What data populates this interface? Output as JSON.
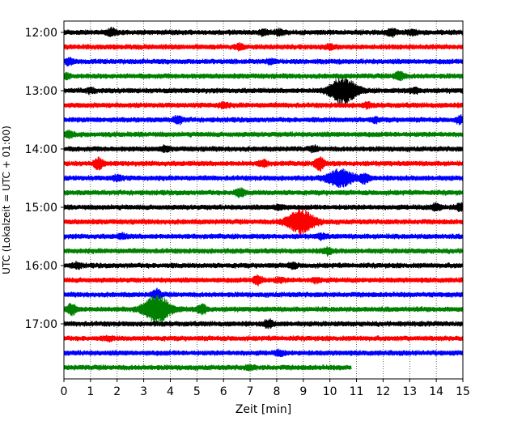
{
  "chart_data": {
    "type": "line",
    "title": "",
    "xlabel": "Zeit  [min]",
    "ylabel": "UTC (Lokalzeit = UTC + 01:00)",
    "xlim": [
      0,
      15
    ],
    "x_ticks": [
      0,
      1,
      2,
      3,
      4,
      5,
      6,
      7,
      8,
      9,
      10,
      11,
      12,
      13,
      14,
      15
    ],
    "x_tick_labels": [
      "0",
      "1",
      "2",
      "3",
      "4",
      "5",
      "6",
      "7",
      "8",
      "9",
      "10",
      "11",
      "12",
      "13",
      "14",
      "15"
    ],
    "y_tick_labels": [
      "12:00",
      "13:00",
      "14:00",
      "15:00",
      "16:00",
      "17:00"
    ],
    "grid": "vertical dotted",
    "trace_interval_min": 15,
    "colors": [
      "#000000",
      "#ff0000",
      "#0000ff",
      "#008000"
    ],
    "series": [
      {
        "start": "12:00",
        "color": "#000000",
        "end_min": 15,
        "events": [
          {
            "x": 1.8,
            "amp": 0.9
          },
          {
            "x": 7.5,
            "amp": 0.6
          },
          {
            "x": 8.1,
            "amp": 0.7
          },
          {
            "x": 12.3,
            "amp": 0.9
          },
          {
            "x": 13.1,
            "amp": 0.6
          }
        ]
      },
      {
        "start": "12:15",
        "color": "#ff0000",
        "end_min": 15,
        "events": [
          {
            "x": 6.6,
            "amp": 0.6
          },
          {
            "x": 10.0,
            "amp": 0.5
          }
        ]
      },
      {
        "start": "12:30",
        "color": "#0000ff",
        "end_min": 15,
        "events": [
          {
            "x": 0.2,
            "amp": 0.8
          },
          {
            "x": 7.8,
            "amp": 0.5
          }
        ]
      },
      {
        "start": "12:45",
        "color": "#008000",
        "end_min": 15,
        "events": [
          {
            "x": 0.1,
            "amp": 0.6
          },
          {
            "x": 12.6,
            "amp": 1.1
          }
        ]
      },
      {
        "start": "13:00",
        "color": "#000000",
        "end_min": 15,
        "events": [
          {
            "x": 1.0,
            "amp": 0.5
          },
          {
            "x": 10.5,
            "amp": 3.5
          },
          {
            "x": 13.2,
            "amp": 0.6
          }
        ]
      },
      {
        "start": "13:15",
        "color": "#ff0000",
        "end_min": 15,
        "events": [
          {
            "x": 6.0,
            "amp": 0.6
          },
          {
            "x": 11.4,
            "amp": 0.5
          }
        ]
      },
      {
        "start": "13:30",
        "color": "#0000ff",
        "end_min": 15,
        "events": [
          {
            "x": 4.3,
            "amp": 0.9
          },
          {
            "x": 11.7,
            "amp": 0.5
          },
          {
            "x": 14.9,
            "amp": 0.8
          }
        ]
      },
      {
        "start": "13:45",
        "color": "#008000",
        "end_min": 15,
        "events": [
          {
            "x": 0.2,
            "amp": 0.7
          }
        ]
      },
      {
        "start": "14:00",
        "color": "#000000",
        "end_min": 15,
        "events": [
          {
            "x": 3.8,
            "amp": 0.5
          },
          {
            "x": 9.4,
            "amp": 0.5
          }
        ]
      },
      {
        "start": "14:15",
        "color": "#ff0000",
        "end_min": 15,
        "events": [
          {
            "x": 1.3,
            "amp": 1.4
          },
          {
            "x": 7.5,
            "amp": 0.7
          },
          {
            "x": 9.6,
            "amp": 1.8
          }
        ]
      },
      {
        "start": "14:30",
        "color": "#0000ff",
        "end_min": 15,
        "events": [
          {
            "x": 2.0,
            "amp": 0.7
          },
          {
            "x": 10.4,
            "amp": 2.2
          },
          {
            "x": 11.3,
            "amp": 1.2
          }
        ]
      },
      {
        "start": "14:45",
        "color": "#008000",
        "end_min": 15,
        "events": [
          {
            "x": 6.6,
            "amp": 1.0
          }
        ]
      },
      {
        "start": "15:00",
        "color": "#000000",
        "end_min": 15,
        "events": [
          {
            "x": 8.1,
            "amp": 0.6
          },
          {
            "x": 14.0,
            "amp": 0.9
          },
          {
            "x": 14.9,
            "amp": 0.8
          }
        ]
      },
      {
        "start": "15:15",
        "color": "#ff0000",
        "end_min": 15,
        "events": [
          {
            "x": 8.9,
            "amp": 3.2
          }
        ]
      },
      {
        "start": "15:30",
        "color": "#0000ff",
        "end_min": 15,
        "events": [
          {
            "x": 2.2,
            "amp": 0.5
          },
          {
            "x": 9.7,
            "amp": 0.6
          }
        ]
      },
      {
        "start": "15:45",
        "color": "#008000",
        "end_min": 15,
        "events": [
          {
            "x": 9.9,
            "amp": 0.8
          }
        ]
      },
      {
        "start": "16:00",
        "color": "#000000",
        "end_min": 15,
        "events": [
          {
            "x": 0.5,
            "amp": 0.6
          },
          {
            "x": 8.6,
            "amp": 0.6
          }
        ]
      },
      {
        "start": "16:15",
        "color": "#ff0000",
        "end_min": 15,
        "events": [
          {
            "x": 7.3,
            "amp": 1.2
          },
          {
            "x": 8.1,
            "amp": 0.5
          },
          {
            "x": 9.5,
            "amp": 0.5
          }
        ]
      },
      {
        "start": "16:30",
        "color": "#0000ff",
        "end_min": 15,
        "events": [
          {
            "x": 3.5,
            "amp": 1.2
          }
        ]
      },
      {
        "start": "16:45",
        "color": "#008000",
        "end_min": 15,
        "events": [
          {
            "x": 0.3,
            "amp": 1.4
          },
          {
            "x": 3.5,
            "amp": 3.6
          },
          {
            "x": 5.2,
            "amp": 1.2
          }
        ]
      },
      {
        "start": "17:00",
        "color": "#000000",
        "end_min": 15,
        "events": [
          {
            "x": 7.7,
            "amp": 0.9
          }
        ]
      },
      {
        "start": "17:15",
        "color": "#ff0000",
        "end_min": 15,
        "events": [
          {
            "x": 1.7,
            "amp": 0.4
          }
        ]
      },
      {
        "start": "17:30",
        "color": "#0000ff",
        "end_min": 15,
        "events": [
          {
            "x": 8.1,
            "amp": 0.6
          }
        ]
      },
      {
        "start": "17:45",
        "color": "#008000",
        "end_min": 10.8,
        "events": [
          {
            "x": 7.0,
            "amp": 0.4
          }
        ]
      }
    ]
  }
}
